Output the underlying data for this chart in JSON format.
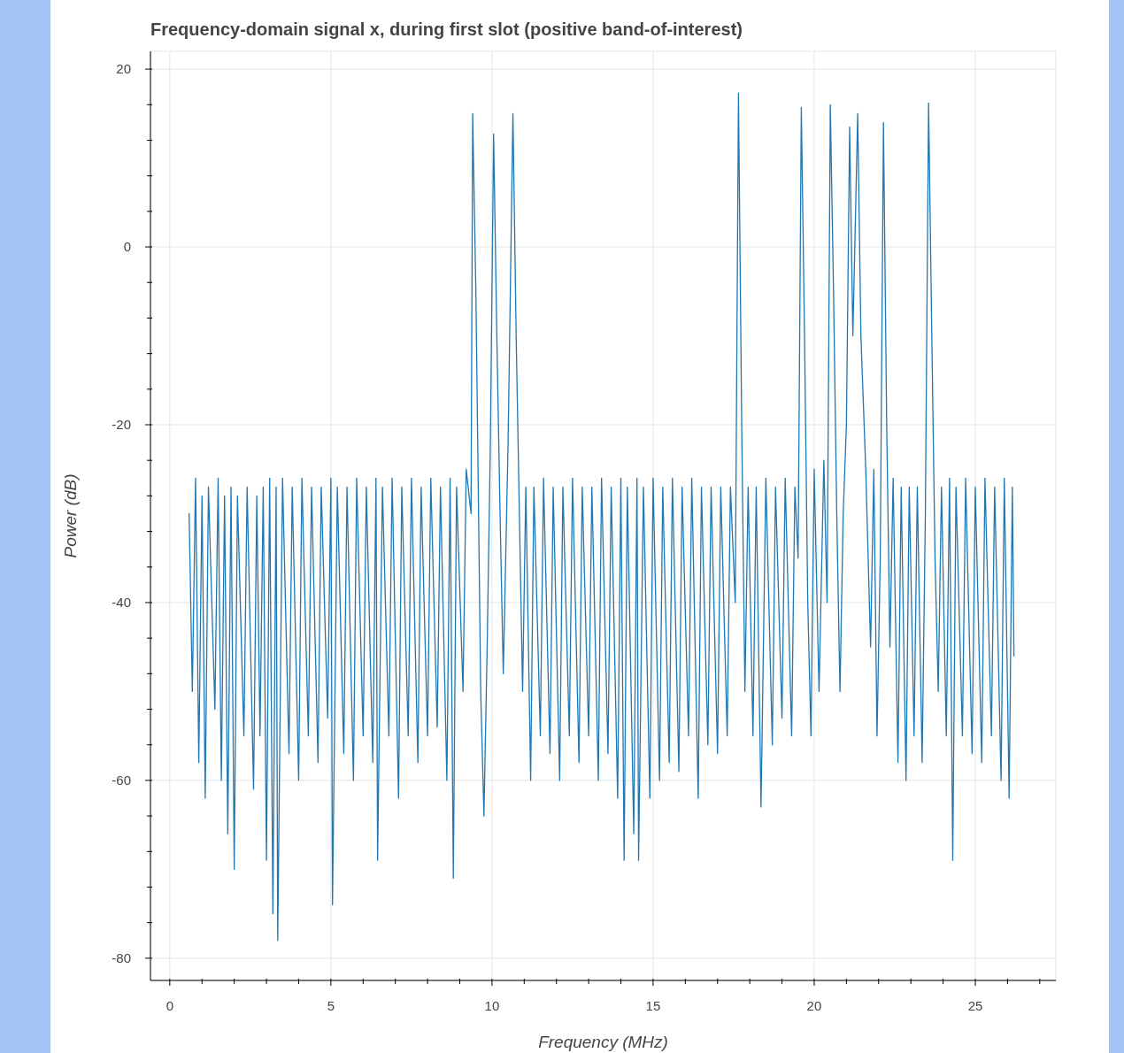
{
  "chart_data": {
    "type": "line",
    "title": "Frequency-domain signal x, during first slot (positive band-of-interest)",
    "xlabel": "Frequency (MHz)",
    "ylabel": "Power (dB)",
    "xlim": [
      -0.6,
      27.5
    ],
    "ylim": [
      -82.5,
      22
    ],
    "xticks": [
      0,
      {
        "value": 1,
        "label": null
      },
      {
        "value": 2,
        "label": null
      },
      {
        "value": 3,
        "label": null
      },
      {
        "value": 4,
        "label": null
      },
      5,
      {
        "value": 6,
        "label": null
      },
      {
        "value": 7,
        "label": null
      },
      {
        "value": 8,
        "label": null
      },
      {
        "value": 9,
        "label": null
      },
      10,
      {
        "value": 11,
        "label": null
      },
      {
        "value": 12,
        "label": null
      },
      {
        "value": 13,
        "label": null
      },
      {
        "value": 14,
        "label": null
      },
      15,
      {
        "value": 16,
        "label": null
      },
      {
        "value": 17,
        "label": null
      },
      {
        "value": 18,
        "label": null
      },
      {
        "value": 19,
        "label": null
      },
      20,
      {
        "value": 21,
        "label": null
      },
      {
        "value": 22,
        "label": null
      },
      {
        "value": 23,
        "label": null
      },
      {
        "value": 24,
        "label": null
      },
      25,
      {
        "value": 26,
        "label": null
      },
      {
        "value": 27,
        "label": null
      }
    ],
    "yticks": [
      -80,
      {
        "value": -76,
        "label": null
      },
      {
        "value": -72,
        "label": null
      },
      {
        "value": -68,
        "label": null
      },
      {
        "value": -64,
        "label": null
      },
      -60,
      {
        "value": -56,
        "label": null
      },
      {
        "value": -52,
        "label": null
      },
      {
        "value": -48,
        "label": null
      },
      {
        "value": -44,
        "label": null
      },
      -40,
      {
        "value": -36,
        "label": null
      },
      {
        "value": -32,
        "label": null
      },
      {
        "value": -28,
        "label": null
      },
      {
        "value": -24,
        "label": null
      },
      -20,
      {
        "value": -16,
        "label": null
      },
      {
        "value": -12,
        "label": null
      },
      {
        "value": -8,
        "label": null
      },
      {
        "value": -4,
        "label": null
      },
      0,
      {
        "value": 4,
        "label": null
      },
      {
        "value": 8,
        "label": null
      },
      {
        "value": 12,
        "label": null
      },
      {
        "value": 16,
        "label": null
      },
      20
    ],
    "grid": true,
    "series": [
      {
        "color": "#1f77b4",
        "x": [
          0.6,
          0.7,
          0.8,
          0.9,
          1.0,
          1.1,
          1.2,
          1.4,
          1.5,
          1.6,
          1.7,
          1.8,
          1.9,
          2.0,
          2.1,
          2.3,
          2.4,
          2.6,
          2.7,
          2.8,
          2.9,
          3.0,
          3.1,
          3.2,
          3.3,
          3.35,
          3.5,
          3.7,
          3.8,
          4.0,
          4.1,
          4.3,
          4.4,
          4.6,
          4.7,
          4.9,
          5.0,
          5.05,
          5.2,
          5.4,
          5.5,
          5.7,
          5.8,
          6.0,
          6.1,
          6.3,
          6.4,
          6.45,
          6.6,
          6.8,
          6.9,
          7.1,
          7.2,
          7.4,
          7.5,
          7.7,
          7.8,
          8.0,
          8.1,
          8.3,
          8.4,
          8.6,
          8.7,
          8.8,
          8.9,
          9.1,
          9.2,
          9.35,
          9.4,
          9.5,
          9.55,
          9.65,
          9.75,
          9.85,
          9.95,
          10.05,
          10.15,
          10.25,
          10.35,
          10.5,
          10.65,
          10.75,
          10.85,
          10.95,
          11.05,
          11.2,
          11.3,
          11.5,
          11.6,
          11.8,
          11.9,
          12.1,
          12.2,
          12.4,
          12.5,
          12.7,
          12.8,
          13.0,
          13.1,
          13.3,
          13.4,
          13.6,
          13.7,
          13.9,
          14.0,
          14.1,
          14.2,
          14.4,
          14.5,
          14.55,
          14.7,
          14.9,
          15.0,
          15.2,
          15.3,
          15.5,
          15.6,
          15.8,
          15.9,
          16.1,
          16.2,
          16.4,
          16.5,
          16.7,
          16.8,
          17.0,
          17.1,
          17.3,
          17.4,
          17.55,
          17.65,
          17.75,
          17.85,
          17.95,
          18.1,
          18.2,
          18.35,
          18.5,
          18.7,
          18.8,
          19.0,
          19.1,
          19.3,
          19.4,
          19.5,
          19.6,
          19.7,
          19.8,
          19.9,
          20.0,
          20.15,
          20.3,
          20.4,
          20.5,
          20.6,
          20.7,
          20.8,
          20.9,
          21.0,
          21.1,
          21.2,
          21.35,
          21.45,
          21.6,
          21.75,
          21.85,
          21.95,
          22.05,
          22.15,
          22.25,
          22.35,
          22.45,
          22.6,
          22.7,
          22.85,
          22.95,
          23.1,
          23.2,
          23.35,
          23.45,
          23.55,
          23.65,
          23.75,
          23.85,
          23.95,
          24.1,
          24.2,
          24.3,
          24.4,
          24.6,
          24.7,
          24.9,
          25.0,
          25.2,
          25.3,
          25.5,
          25.6,
          25.8,
          25.9,
          26.05,
          26.15,
          26.2
        ],
        "values": [
          -30,
          -50,
          -26,
          -58,
          -28,
          -62,
          -27,
          -52,
          -26,
          -60,
          -28,
          -66,
          -27,
          -70,
          -28,
          -55,
          -27,
          -61,
          -28,
          -55,
          -27,
          -69,
          -26,
          -75,
          -27,
          -78,
          -26,
          -57,
          -27,
          -60,
          -26,
          -55,
          -27,
          -58,
          -27,
          -53,
          -26,
          -74,
          -27,
          -57,
          -27,
          -60,
          -26,
          -55,
          -27,
          -58,
          -26,
          -69,
          -27,
          -55,
          -26,
          -62,
          -27,
          -55,
          -26,
          -58,
          -27,
          -55,
          -26,
          -54,
          -27,
          -60,
          -26,
          -71,
          -27,
          -50,
          -25,
          -30,
          15,
          -5,
          -20,
          -50,
          -64,
          -45,
          -22,
          12.7,
          -10,
          -30,
          -48,
          -22,
          15,
          -10,
          -30,
          -50,
          -27,
          -60,
          -27,
          -55,
          -26,
          -57,
          -27,
          -60,
          -27,
          -55,
          -26,
          -58,
          -27,
          -55,
          -27,
          -60,
          -26,
          -57,
          -27,
          -62,
          -26,
          -69,
          -27,
          -66,
          -26,
          -69,
          -27,
          -62,
          -26,
          -60,
          -27,
          -58,
          -26,
          -59,
          -27,
          -55,
          -26,
          -62,
          -27,
          -56,
          -27,
          -57,
          -27,
          -55,
          -27,
          -40,
          17.3,
          -20,
          -50,
          -27,
          -55,
          -27,
          -63,
          -26,
          -56,
          -27,
          -53,
          -26,
          -55,
          -27,
          -35,
          15.7,
          -10,
          -40,
          -55,
          -25,
          -50,
          -24,
          -40,
          16,
          -5,
          -30,
          -50,
          -30,
          -20,
          13.5,
          -10,
          15,
          -10,
          -25,
          -45,
          -25,
          -55,
          -35,
          14,
          -20,
          -45,
          -26,
          -58,
          -27,
          -60,
          -27,
          -55,
          -27,
          -58,
          -30,
          16.2,
          -10,
          -35,
          -50,
          -27,
          -55,
          -26,
          -69,
          -27,
          -55,
          -26,
          -57,
          -27,
          -58,
          -26,
          -55,
          -27,
          -60,
          -26,
          -62,
          -27,
          -46
        ]
      }
    ]
  }
}
